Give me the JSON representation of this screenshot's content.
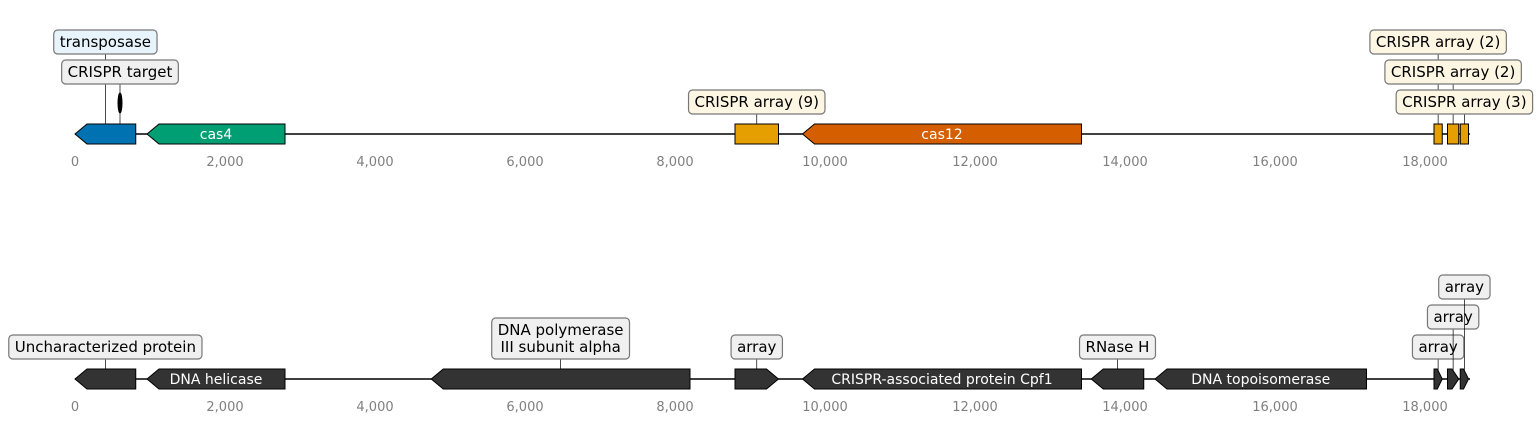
{
  "axis": {
    "ticks": [
      0,
      2000,
      4000,
      6000,
      8000,
      10000,
      12000,
      14000,
      16000,
      18000
    ],
    "tick_labels": [
      "0",
      "2,000",
      "4,000",
      "6,000",
      "8,000",
      "10,000",
      "12,000",
      "14,000",
      "16,000",
      "18,000"
    ],
    "xlim": [
      0,
      19000
    ]
  },
  "colors": {
    "line": "#000000",
    "tick_text": "#808080",
    "dark_feature": "#333333",
    "box_light": "#f0f0f0",
    "box_blue": "#e8f4fb",
    "box_cream": "#fdf6e3"
  },
  "tracks": [
    {
      "id": "top",
      "seq_end": 18600,
      "features": [
        {
          "id": "transposase",
          "start": 0,
          "end": 810,
          "strand": -1,
          "color": "#0072b2",
          "label": "",
          "callout": {
            "text": [
              "transposase"
            ],
            "box": "#e8f4fb",
            "level": 2
          }
        },
        {
          "id": "crispr-target",
          "start": 580,
          "end": 620,
          "strand": 0,
          "shape": "ellipse",
          "color": "#000000",
          "label": "",
          "callout": {
            "text": [
              "CRISPR target"
            ],
            "box": "#f0f0f0",
            "level": 1
          }
        },
        {
          "id": "cas4",
          "start": 960,
          "end": 2800,
          "strand": -1,
          "color": "#009e73",
          "label": "cas4"
        },
        {
          "id": "crispr-array-9",
          "start": 8800,
          "end": 9380,
          "strand": 0,
          "color": "#e69f00",
          "label": "",
          "callout": {
            "text": [
              "CRISPR array (9)"
            ],
            "box": "#fdf6e3",
            "level": 0
          }
        },
        {
          "id": "cas12",
          "start": 9700,
          "end": 13420,
          "strand": -1,
          "color": "#d55e00",
          "label": "cas12"
        },
        {
          "id": "crispr-array-2a",
          "start": 18120,
          "end": 18230,
          "strand": 0,
          "color": "#e69f00",
          "label": "",
          "callout": {
            "text": [
              "CRISPR array (2)"
            ],
            "box": "#fdf6e3",
            "level": 2
          }
        },
        {
          "id": "crispr-array-2b",
          "start": 18300,
          "end": 18450,
          "strand": 0,
          "color": "#e69f00",
          "label": "",
          "callout": {
            "text": [
              "CRISPR array (2)"
            ],
            "box": "#fdf6e3",
            "level": 1
          }
        },
        {
          "id": "crispr-array-3",
          "start": 18470,
          "end": 18580,
          "strand": 0,
          "color": "#e69f00",
          "label": "",
          "callout": {
            "text": [
              "CRISPR array (3)"
            ],
            "box": "#fdf6e3",
            "level": 0
          }
        }
      ]
    },
    {
      "id": "bottom",
      "seq_end": 18600,
      "features": [
        {
          "id": "uncharacterized-protein",
          "start": 0,
          "end": 810,
          "strand": -1,
          "color": "#333333",
          "label": "",
          "callout": {
            "text": [
              "Uncharacterized protein"
            ],
            "box": "#f0f0f0",
            "level": 0
          }
        },
        {
          "id": "dna-helicase",
          "start": 960,
          "end": 2800,
          "strand": -1,
          "color": "#333333",
          "label": "DNA helicase"
        },
        {
          "id": "dna-polymerase",
          "start": 4750,
          "end": 8200,
          "strand": -1,
          "color": "#333333",
          "label": "",
          "callout": {
            "text": [
              "DNA polymerase",
              "III subunit alpha"
            ],
            "box": "#f0f0f0",
            "level": 0
          }
        },
        {
          "id": "array-main",
          "start": 8800,
          "end": 9380,
          "strand": 1,
          "color": "#333333",
          "label": "",
          "callout": {
            "text": [
              "array"
            ],
            "box": "#f0f0f0",
            "level": 0
          }
        },
        {
          "id": "cpf1",
          "start": 9700,
          "end": 13420,
          "strand": -1,
          "color": "#333333",
          "label": "CRISPR-associated protein Cpf1"
        },
        {
          "id": "rnase-h",
          "start": 13550,
          "end": 14250,
          "strand": -1,
          "color": "#333333",
          "label": "",
          "callout": {
            "text": [
              "RNase H"
            ],
            "box": "#f0f0f0",
            "level": 0
          }
        },
        {
          "id": "dna-topoisomerase",
          "start": 14400,
          "end": 17220,
          "strand": -1,
          "color": "#333333",
          "label": "DNA topoisomerase"
        },
        {
          "id": "array-a",
          "start": 18120,
          "end": 18230,
          "strand": 1,
          "color": "#333333",
          "label": "",
          "callout": {
            "text": [
              "array"
            ],
            "box": "#f0f0f0",
            "level": 0
          }
        },
        {
          "id": "array-b",
          "start": 18300,
          "end": 18450,
          "strand": 1,
          "color": "#333333",
          "label": "",
          "callout": {
            "text": [
              "array"
            ],
            "box": "#f0f0f0",
            "level": 1
          }
        },
        {
          "id": "array-c",
          "start": 18470,
          "end": 18580,
          "strand": 1,
          "color": "#333333",
          "label": "",
          "callout": {
            "text": [
              "array"
            ],
            "box": "#f0f0f0",
            "level": 2
          }
        }
      ]
    }
  ]
}
